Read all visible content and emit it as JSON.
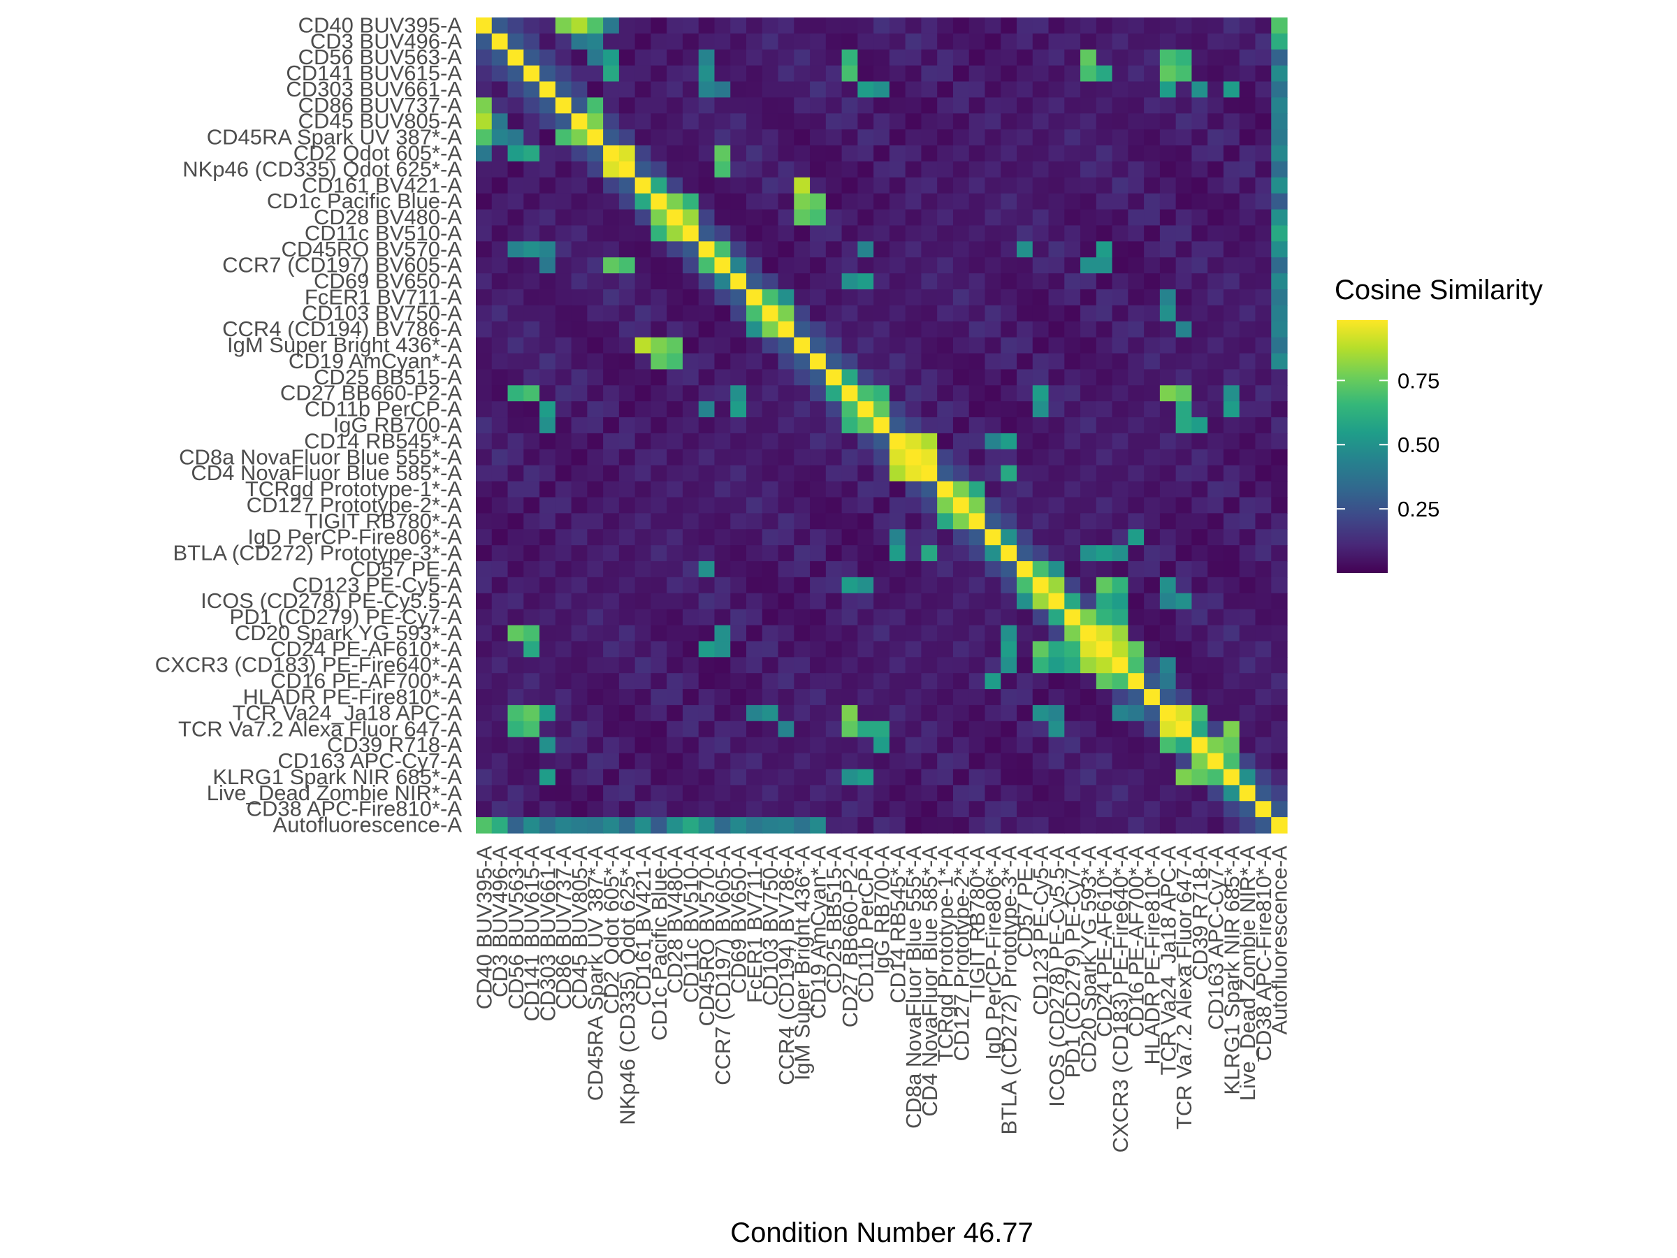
{
  "chart_data": {
    "type": "heatmap",
    "title": "",
    "xlabel": "Condition Number 46.77",
    "ylabel": "",
    "grid": false,
    "legend_position": "right",
    "colorscale": "viridis",
    "colorscale_colors": [
      "#440154",
      "#482878",
      "#3e4989",
      "#31688e",
      "#26828e",
      "#1f9e89",
      "#35b779",
      "#6ece58",
      "#b5de2b",
      "#fde725"
    ],
    "value_range": [
      0,
      1
    ],
    "legend": {
      "title": "Cosine Similarity",
      "ticks": [
        0.25,
        0.5,
        0.75
      ],
      "tick_labels": [
        "0.25",
        "0.50",
        "0.75"
      ]
    },
    "labels": [
      "CD40 BUV395-A",
      "CD3 BUV496-A",
      "CD56 BUV563-A",
      "CD141 BUV615-A",
      "CD303 BUV661-A",
      "CD86 BUV737-A",
      "CD45 BUV805-A",
      "CD45RA Spark UV 387*-A",
      "CD2 Qdot 605*-A",
      "NKp46 (CD335) Qdot 625*-A",
      "CD161 BV421-A",
      "CD1c Pacific Blue-A",
      "CD28 BV480-A",
      "CD11c BV510-A",
      "CD45RO BV570-A",
      "CCR7 (CD197) BV605-A",
      "CD69 BV650-A",
      "FcER1 BV711-A",
      "CD103 BV750-A",
      "CCR4 (CD194) BV786-A",
      "IgM Super Bright 436*-A",
      "CD19 AmCyan*-A",
      "CD25 BB515-A",
      "CD27 BB660-P2-A",
      "CD11b PerCP-A",
      "IgG RB700-A",
      "CD14 RB545*-A",
      "CD8a NovaFluor Blue 555*-A",
      "CD4 NovaFluor Blue 585*-A",
      "TCRgd Prototype-1*-A",
      "CD127 Prototype-2*-A",
      "TIGIT RB780*-A",
      "IgD PerCP-Fire806*-A",
      "BTLA (CD272) Prototype-3*-A",
      "CD57 PE-A",
      "CD123 PE-Cy5-A",
      "ICOS (CD278) PE-Cy5.5-A",
      "PD1 (CD279) PE-Cy7-A",
      "CD20 Spark YG 593*-A",
      "CD24 PE-AF610*-A",
      "CXCR3 (CD183) PE-Fire640*-A",
      "CD16 PE-AF700*-A",
      "HLADR PE-Fire810*-A",
      "TCR Va24_Ja18 APC-A",
      "TCR Va7.2 Alexa Fluor 647-A",
      "CD39 R718-A",
      "CD163 APC-Cy7-A",
      "KLRG1 Spark NIR 685*-A",
      "Live_Dead Zombie NIR*-A",
      "CD38 APC-Fire810*-A",
      "Autofluorescence-A"
    ],
    "strong_pairs": [
      [
        0,
        5,
        0.8
      ],
      [
        0,
        6,
        0.88
      ],
      [
        0,
        7,
        0.72
      ],
      [
        0,
        50,
        0.72
      ],
      [
        1,
        50,
        0.62
      ],
      [
        5,
        7,
        0.7
      ],
      [
        6,
        7,
        0.8
      ],
      [
        2,
        8,
        0.55
      ],
      [
        3,
        8,
        0.6
      ],
      [
        3,
        14,
        0.5
      ],
      [
        2,
        14,
        0.45
      ],
      [
        8,
        9,
        0.95
      ],
      [
        8,
        15,
        0.75
      ],
      [
        9,
        15,
        0.7
      ],
      [
        10,
        20,
        0.9
      ],
      [
        11,
        20,
        0.8
      ],
      [
        12,
        20,
        0.75
      ],
      [
        10,
        11,
        0.6
      ],
      [
        11,
        12,
        0.8
      ],
      [
        12,
        13,
        0.85
      ],
      [
        11,
        13,
        0.65
      ],
      [
        11,
        21,
        0.75
      ],
      [
        12,
        21,
        0.7
      ],
      [
        13,
        50,
        0.6
      ],
      [
        14,
        15,
        0.7
      ],
      [
        15,
        16,
        0.45
      ],
      [
        17,
        18,
        0.7
      ],
      [
        18,
        19,
        0.8
      ],
      [
        17,
        19,
        0.5
      ],
      [
        22,
        23,
        0.6
      ],
      [
        23,
        24,
        0.7
      ],
      [
        23,
        25,
        0.65
      ],
      [
        24,
        25,
        0.75
      ],
      [
        26,
        27,
        0.95
      ],
      [
        26,
        28,
        0.88
      ],
      [
        27,
        28,
        0.97
      ],
      [
        28,
        33,
        0.6
      ],
      [
        26,
        33,
        0.55
      ],
      [
        29,
        30,
        0.8
      ],
      [
        30,
        31,
        0.8
      ],
      [
        29,
        31,
        0.6
      ],
      [
        32,
        33,
        0.5
      ],
      [
        34,
        35,
        0.7
      ],
      [
        35,
        36,
        0.85
      ],
      [
        34,
        36,
        0.5
      ],
      [
        36,
        37,
        0.6
      ],
      [
        37,
        38,
        0.8
      ],
      [
        38,
        39,
        0.95
      ],
      [
        38,
        40,
        0.85
      ],
      [
        39,
        40,
        0.9
      ],
      [
        39,
        41,
        0.75
      ],
      [
        40,
        41,
        0.7
      ],
      [
        43,
        44,
        0.95
      ],
      [
        43,
        45,
        0.7
      ],
      [
        44,
        45,
        0.6
      ],
      [
        45,
        46,
        0.8
      ],
      [
        45,
        47,
        0.75
      ],
      [
        46,
        47,
        0.7
      ],
      [
        47,
        48,
        0.5
      ],
      [
        44,
        47,
        0.8
      ],
      [
        3,
        23,
        0.7
      ],
      [
        3,
        43,
        0.75
      ],
      [
        3,
        44,
        0.7
      ],
      [
        4,
        43,
        0.55
      ],
      [
        4,
        45,
        0.5
      ],
      [
        4,
        47,
        0.55
      ],
      [
        2,
        38,
        0.75
      ],
      [
        3,
        38,
        0.7
      ],
      [
        3,
        39,
        0.6
      ],
      [
        23,
        43,
        0.8
      ],
      [
        23,
        44,
        0.75
      ],
      [
        24,
        44,
        0.6
      ],
      [
        24,
        47,
        0.55
      ],
      [
        23,
        47,
        0.5
      ],
      [
        16,
        23,
        0.5
      ],
      [
        16,
        24,
        0.55
      ],
      [
        15,
        38,
        0.5
      ],
      [
        14,
        39,
        0.55
      ],
      [
        15,
        39,
        0.5
      ],
      [
        14,
        34,
        0.5
      ],
      [
        4,
        24,
        0.55
      ],
      [
        4,
        25,
        0.5
      ],
      [
        35,
        39,
        0.75
      ],
      [
        35,
        40,
        0.65
      ],
      [
        36,
        39,
        0.6
      ],
      [
        36,
        40,
        0.55
      ],
      [
        37,
        39,
        0.65
      ],
      [
        37,
        40,
        0.6
      ],
      [
        35,
        43,
        0.5
      ],
      [
        36,
        43,
        0.45
      ],
      [
        36,
        44,
        0.5
      ],
      [
        40,
        43,
        0.45
      ],
      [
        41,
        43,
        0.4
      ],
      [
        33,
        38,
        0.5
      ],
      [
        33,
        39,
        0.55
      ],
      [
        33,
        40,
        0.5
      ],
      [
        32,
        41,
        0.55
      ],
      [
        25,
        44,
        0.6
      ],
      [
        25,
        45,
        0.55
      ],
      [
        26,
        32,
        0.45
      ],
      [
        24,
        35,
        0.5
      ],
      [
        23,
        35,
        0.55
      ],
      [
        2,
        43,
        0.7
      ],
      [
        2,
        44,
        0.65
      ],
      [
        2,
        23,
        0.65
      ],
      [
        18,
        43,
        0.5
      ],
      [
        17,
        43,
        0.45
      ],
      [
        19,
        44,
        0.45
      ],
      [
        1,
        6,
        0.4
      ],
      [
        1,
        7,
        0.45
      ],
      [
        2,
        7,
        0.4
      ],
      [
        0,
        8,
        0.4
      ],
      [
        14,
        24,
        0.45
      ],
      [
        4,
        14,
        0.45
      ],
      [
        4,
        15,
        0.4
      ],
      [
        12,
        50,
        0.4
      ],
      [
        10,
        50,
        0.4
      ]
    ]
  }
}
